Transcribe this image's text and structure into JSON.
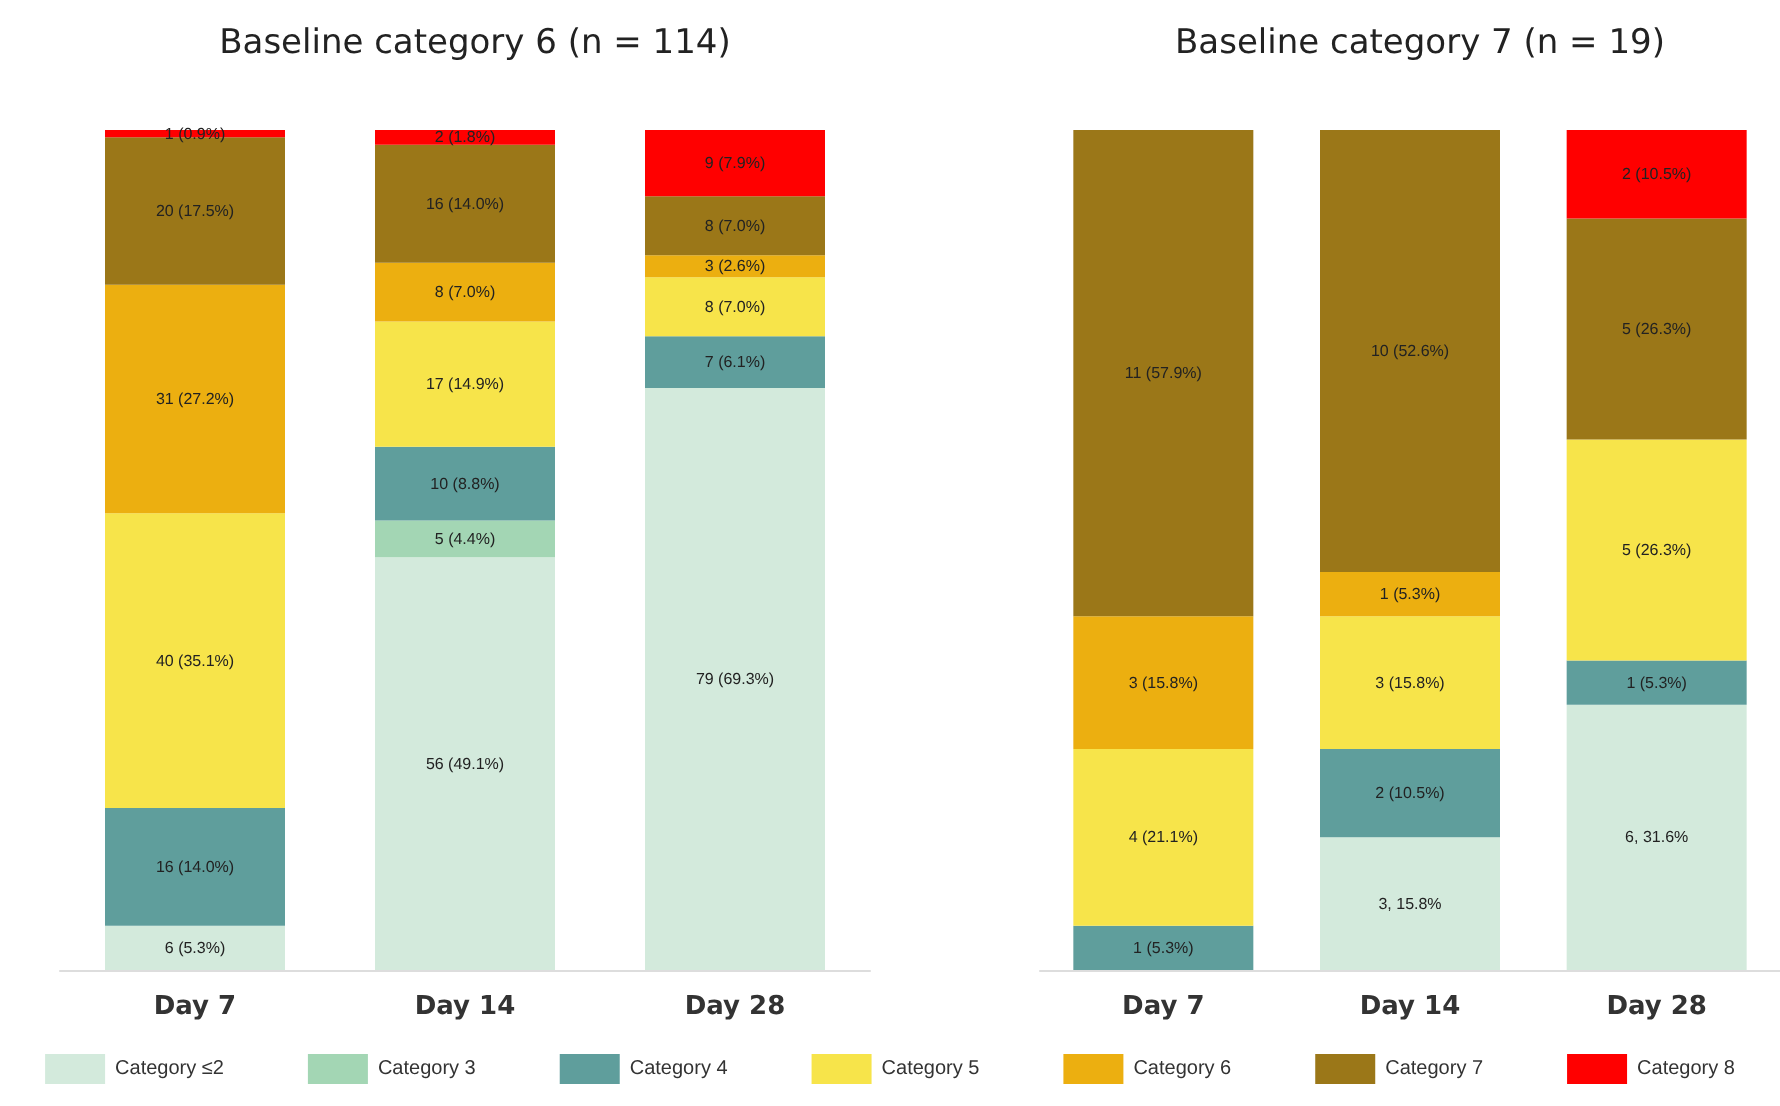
{
  "chart_data": [
    {
      "type": "bar",
      "title": "Baseline category 6 (n = 114)",
      "stacked": true,
      "legend": "bottom",
      "categories": [
        "Day 7",
        "Day 14",
        "Day 28"
      ],
      "series": [
        {
          "name": "Category ≤2",
          "color": "#d3eadc",
          "values": [
            6,
            56,
            79
          ],
          "value_labels": [
            "6 (5.3%)",
            "56 (49.1%)",
            "79 (69.3%)"
          ]
        },
        {
          "name": "Category 3",
          "color": "#a3d6b4",
          "values": [
            0,
            5,
            0
          ],
          "value_labels": [
            null,
            "5 (4.4%)",
            null
          ]
        },
        {
          "name": "Category 4",
          "color": "#5f9e9c",
          "values": [
            16,
            10,
            7
          ],
          "value_labels": [
            "16 (14.0%)",
            "10 (8.8%)",
            "7 (6.1%)"
          ]
        },
        {
          "name": "Category 5",
          "color": "#f7e44a",
          "values": [
            40,
            17,
            8
          ],
          "value_labels": [
            "40 (35.1%)",
            "17 (14.9%)",
            "8 (7.0%)"
          ]
        },
        {
          "name": "Category 6",
          "color": "#ecaf10",
          "values": [
            31,
            8,
            3
          ],
          "value_labels": [
            "31 (27.2%)",
            "8 (7.0%)",
            "3 (2.6%)"
          ]
        },
        {
          "name": "Category 7",
          "color": "#9b7718",
          "values": [
            20,
            16,
            8
          ],
          "value_labels": [
            "20 (17.5%)",
            "16 (14.0%)",
            "8 (7.0%)"
          ]
        },
        {
          "name": "Category 8",
          "color": "#ff0000",
          "values": [
            1,
            2,
            9
          ],
          "value_labels": [
            "1 (0.9%)",
            "2 (1.8%)",
            "9 (7.9%)"
          ]
        }
      ]
    },
    {
      "type": "bar",
      "title": "Baseline category 7 (n = 19)",
      "stacked": true,
      "categories": [
        "Day 7",
        "Day 14",
        "Day 28"
      ],
      "series": [
        {
          "color": "#d3eadc",
          "values": [
            0,
            3,
            6
          ],
          "value_labels": [
            null,
            "3, 15.8%",
            "6, 31.6%"
          ]
        },
        {
          "color": "#a3d6b4",
          "values": [
            0,
            0,
            0
          ],
          "value_labels": [
            null,
            null,
            null
          ]
        },
        {
          "color": "#5f9e9c",
          "values": [
            1,
            2,
            1
          ],
          "value_labels": [
            "1 (5.3%)",
            "2 (10.5%)",
            "1 (5.3%)"
          ]
        },
        {
          "color": "#f7e44a",
          "values": [
            4,
            3,
            5
          ],
          "value_labels": [
            "4 (21.1%)",
            "3 (15.8%)",
            "5 (26.3%)"
          ]
        },
        {
          "color": "#ecaf10",
          "values": [
            3,
            1,
            0
          ],
          "value_labels": [
            "3 (15.8%)",
            "1 (5.3%)",
            null
          ]
        },
        {
          "color": "#9b7718",
          "values": [
            11,
            10,
            5
          ],
          "value_labels": [
            "11 (57.9%)",
            "10 (52.6%)",
            "5 (26.3%)"
          ]
        },
        {
          "color": "#ff0000",
          "values": [
            0,
            0,
            2
          ],
          "value_labels": [
            null,
            null,
            "2 (10.5%)"
          ]
        }
      ]
    }
  ]
}
